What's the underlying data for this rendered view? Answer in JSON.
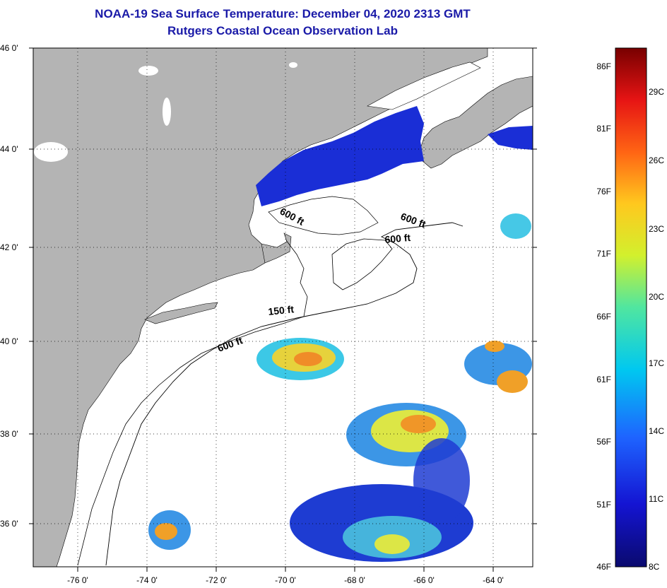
{
  "title": {
    "line1": "NOAA-19 Sea Surface Temperature:  December 04, 2020 2313 GMT",
    "line2": "Rutgers Coastal Ocean Observation Lab"
  },
  "map": {
    "lat_labels": [
      "46 0'",
      "44 0'",
      "42 0'",
      "40 0'",
      "38 0'",
      "36 0'"
    ],
    "lon_labels": [
      "-76 0'",
      "-74 0'",
      "-72 0'",
      "-70 0'",
      "-68 0'",
      "-66 0'",
      "-64 0'"
    ],
    "contour_labels": [
      "600 ft",
      "600 ft",
      "600 ft",
      "150 ft",
      "600 ft"
    ],
    "colors": {
      "land": "#b4b4b4",
      "ocean": "#ffffff",
      "gulf_of_maine": "#1a2ed6"
    }
  },
  "colorbar": {
    "fahrenheit": [
      "86F",
      "81F",
      "76F",
      "71F",
      "66F",
      "61F",
      "56F",
      "51F",
      "46F"
    ],
    "celsius": [
      "29C",
      "26C",
      "23C",
      "20C",
      "17C",
      "14C",
      "11C",
      "8C"
    ],
    "colors": [
      "#0a0a6e",
      "#1414d2",
      "#1e64ff",
      "#00c8f0",
      "#50e6a0",
      "#d2f02d",
      "#ffc81e",
      "#ff6414",
      "#e61414",
      "#780000"
    ]
  }
}
